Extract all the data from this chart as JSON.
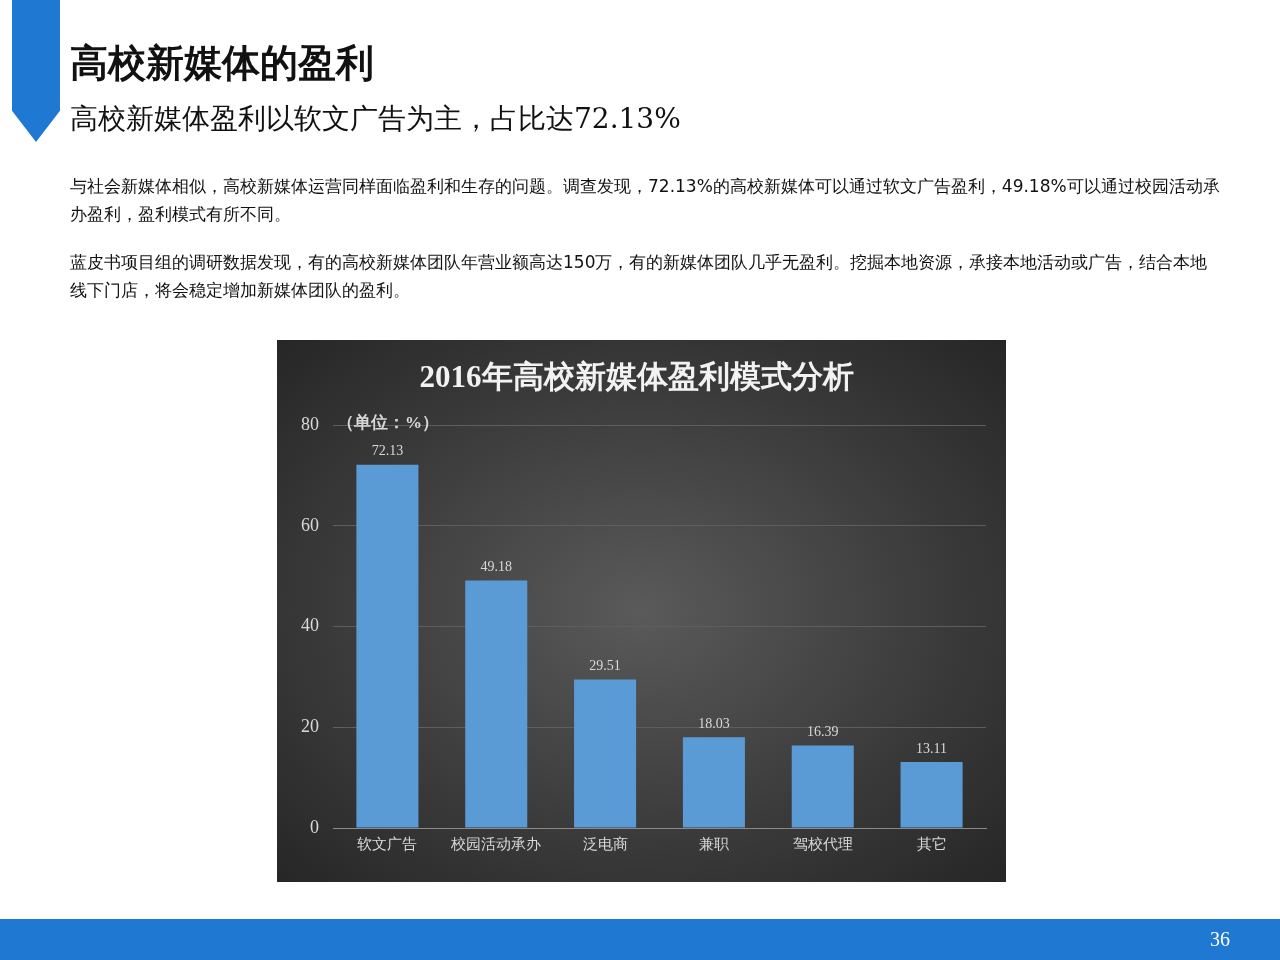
{
  "chart_data": {
    "type": "bar",
    "title": "2016年高校新媒体盈利模式分析",
    "ylabel": "（单位：%）",
    "categories": [
      "软文广告",
      "校园活动承办",
      "泛电商",
      "兼职",
      "驾校代理",
      "其它"
    ],
    "values": [
      72.13,
      49.18,
      29.51,
      18.03,
      16.39,
      13.11
    ],
    "color": "#5b9bd5",
    "ylim": [
      0,
      80
    ],
    "yticks": [
      0,
      20,
      40,
      60,
      80
    ],
    "grid": "y",
    "data_labels": true,
    "legend": false,
    "annotations": [
      "高校新媒体的盈利",
      "高校新媒体盈利以软文广告为主，占比达72.13%",
      "与社会新媒体相似，高校新媒体运营同样面临盈利和生存的问题。调查发现，72.13%的高校新媒体可以通过软文广告盈利，49.18%可以通过校园活动承办盈利，盈利模式有所不同。",
      "蓝皮书项目组的调研数据发现，有的高校新媒体团队年营业额高达150万，有的新媒体团队几乎无盈利。挖掘本地资源，承接本地活动或广告，结合本地线下门店，将会稳定增加新媒体团队的盈利。",
      "36"
    ]
  }
}
